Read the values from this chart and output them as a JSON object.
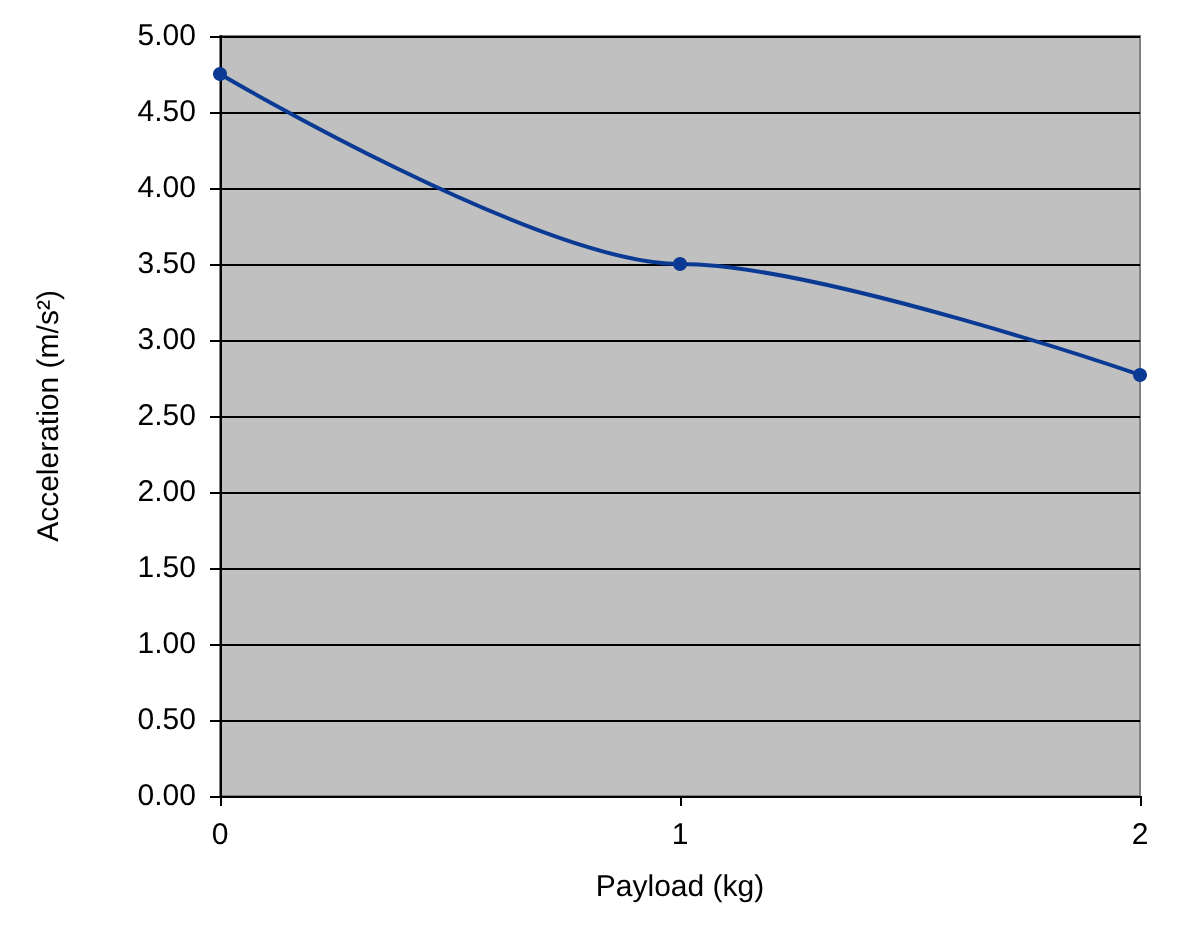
{
  "chart_data": {
    "type": "line",
    "xlabel": "Payload (kg)",
    "ylabel": "Acceleration (m/s²)",
    "x": [
      0,
      1,
      2
    ],
    "series": [
      {
        "color": "#0b3a94",
        "values": [
          4.75,
          3.5,
          2.77
        ]
      }
    ],
    "xlim": [
      0,
      2
    ],
    "xticks": [
      0,
      1,
      2
    ],
    "ylim": [
      0,
      5
    ],
    "yticks": [
      {
        "value": 0,
        "label": "0.00"
      },
      {
        "value": 0.5,
        "label": "0.50"
      },
      {
        "value": 1,
        "label": "1.00"
      },
      {
        "value": 1.5,
        "label": "1.50"
      },
      {
        "value": 2,
        "label": "2.00"
      },
      {
        "value": 2.5,
        "label": "2.50"
      },
      {
        "value": 3,
        "label": "3.00"
      },
      {
        "value": 3.5,
        "label": "3.50"
      },
      {
        "value": 4,
        "label": "4.00"
      },
      {
        "value": 4.5,
        "label": "4.50"
      },
      {
        "value": 5,
        "label": "5.00"
      }
    ],
    "grid": "y",
    "marker": "circle",
    "line_style": "solid"
  }
}
